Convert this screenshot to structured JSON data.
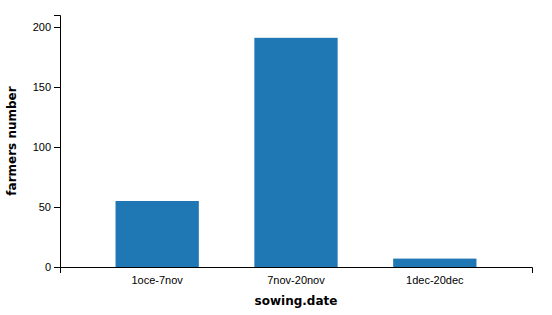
{
  "chart_data": {
    "type": "bar",
    "categories": [
      "1oce-7nov",
      "7nov-20nov",
      "1dec-20dec"
    ],
    "values": [
      55,
      191,
      7
    ],
    "xlabel": "sowing.date",
    "ylabel": "farmers number",
    "ylim": [
      0,
      210
    ],
    "yticks": [
      0,
      50,
      100,
      150,
      200
    ],
    "grid": false
  }
}
